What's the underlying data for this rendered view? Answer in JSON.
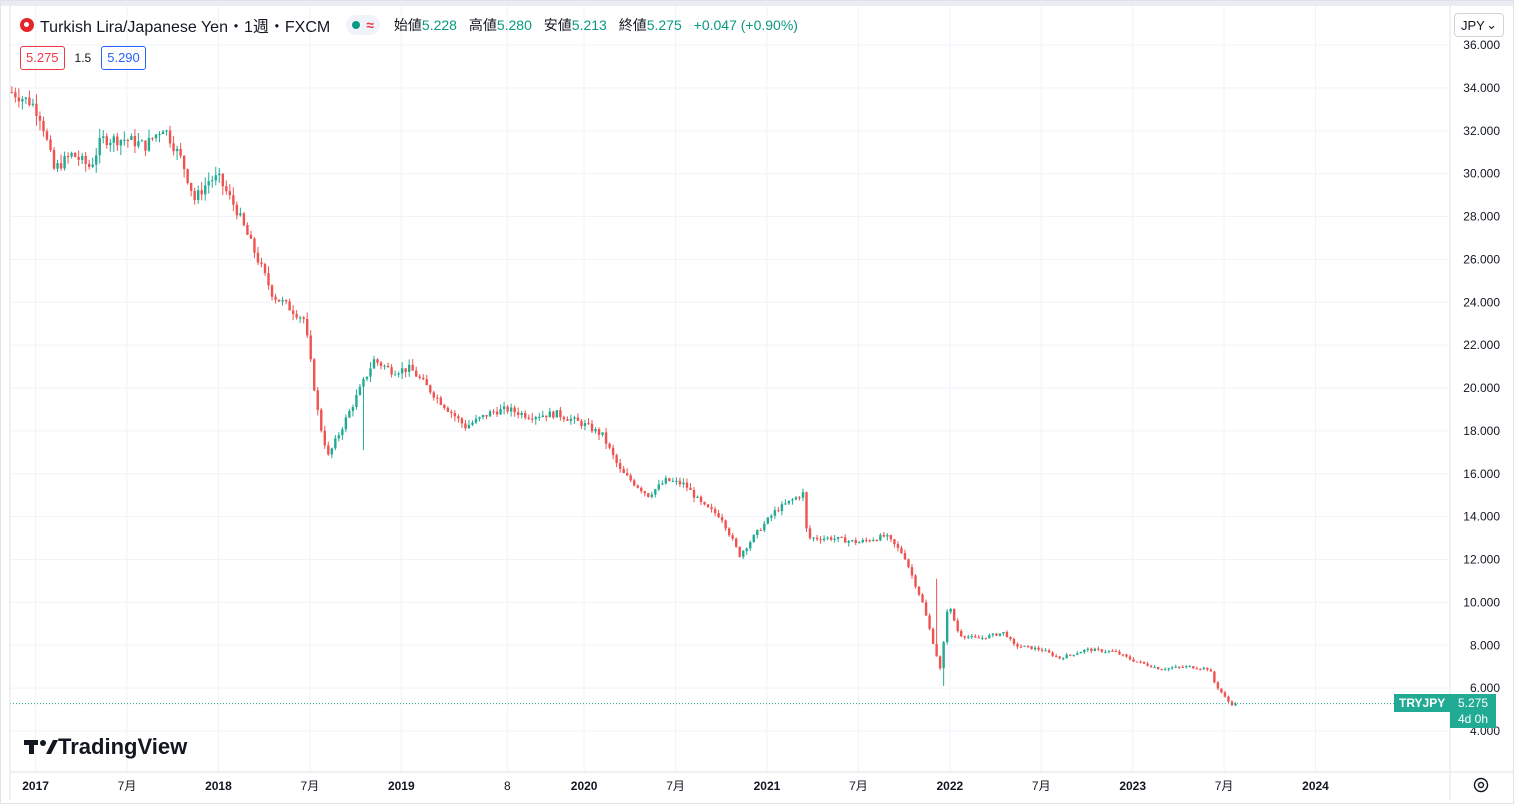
{
  "header": {
    "symbol_title": "Turkish Lira/Japanese Yen・1週・FXCM",
    "status_icon": "market-open-dot",
    "wave_icon": "≈",
    "ohlc": [
      {
        "label": "始値",
        "value": "5.228"
      },
      {
        "label": "高値",
        "value": "5.280"
      },
      {
        "label": "安値",
        "value": "5.213"
      },
      {
        "label": "終値",
        "value": "5.275"
      }
    ],
    "change": "+0.047 (+0.90%)"
  },
  "trade": {
    "sell": "5.275",
    "spread": "1.5",
    "buy": "5.290"
  },
  "currency": {
    "value": "JPY",
    "chevron": "⌄"
  },
  "brand": {
    "mark": "17",
    "name": "TradingView"
  },
  "last_price": {
    "symbol": "TRYJPY",
    "value": "5.275",
    "countdown": "4d 0h"
  },
  "colors": {
    "up": "#22ab94",
    "down": "#ef5350",
    "grid": "#f0f3fa",
    "axis_text": "#131722"
  },
  "chart_data": {
    "type": "candlestick",
    "title": "Turkish Lira/Japanese Yen・1週・FXCM",
    "ylim": [
      4,
      36
    ],
    "y_ticks": [
      "4.000",
      "6.000",
      "8.000",
      "10.000",
      "12.000",
      "14.000",
      "16.000",
      "18.000",
      "20.000",
      "22.000",
      "24.000",
      "26.000",
      "28.000",
      "30.000",
      "32.000",
      "34.000",
      "36.000"
    ],
    "x_ticks": [
      {
        "label": "2017",
        "year": 2017.0
      },
      {
        "label": "7月",
        "year": 2017.5
      },
      {
        "label": "2018",
        "year": 2018.0
      },
      {
        "label": "7月",
        "year": 2018.5
      },
      {
        "label": "2019",
        "year": 2019.0
      },
      {
        "label": "8",
        "year": 2019.58
      },
      {
        "label": "2020",
        "year": 2020.0
      },
      {
        "label": "7月",
        "year": 2020.5
      },
      {
        "label": "2021",
        "year": 2021.0
      },
      {
        "label": "7月",
        "year": 2021.5
      },
      {
        "label": "2022",
        "year": 2022.0
      },
      {
        "label": "7月",
        "year": 2022.5
      },
      {
        "label": "2023",
        "year": 2023.0
      },
      {
        "label": "7月",
        "year": 2023.5
      },
      {
        "label": "2024",
        "year": 2024.0
      }
    ],
    "x_range": [
      2016.86,
      2024.73
    ],
    "path_keypoints": [
      {
        "year": 2016.87,
        "close": 33.8
      },
      {
        "year": 2016.98,
        "close": 33.3
      },
      {
        "year": 2017.03,
        "close": 32.6
      },
      {
        "year": 2017.1,
        "close": 30.2
      },
      {
        "year": 2017.2,
        "close": 30.9
      },
      {
        "year": 2017.3,
        "close": 30.3
      },
      {
        "year": 2017.36,
        "close": 31.6
      },
      {
        "year": 2017.5,
        "close": 31.6
      },
      {
        "year": 2017.6,
        "close": 31.3
      },
      {
        "year": 2017.7,
        "close": 32.2
      },
      {
        "year": 2017.8,
        "close": 30.6
      },
      {
        "year": 2017.87,
        "close": 28.8
      },
      {
        "year": 2017.95,
        "close": 29.7
      },
      {
        "year": 2018.0,
        "close": 29.8
      },
      {
        "year": 2018.1,
        "close": 28.3
      },
      {
        "year": 2018.2,
        "close": 26.3
      },
      {
        "year": 2018.3,
        "close": 24.3
      },
      {
        "year": 2018.35,
        "close": 24.0
      },
      {
        "year": 2018.47,
        "close": 23.2
      },
      {
        "year": 2018.55,
        "close": 18.5
      },
      {
        "year": 2018.6,
        "close": 16.8
      },
      {
        "year": 2018.75,
        "close": 19.5
      },
      {
        "year": 2018.85,
        "close": 21.3
      },
      {
        "year": 2018.95,
        "close": 20.8
      },
      {
        "year": 2019.05,
        "close": 20.9
      },
      {
        "year": 2019.2,
        "close": 19.5
      },
      {
        "year": 2019.35,
        "close": 18.2
      },
      {
        "year": 2019.5,
        "close": 18.9
      },
      {
        "year": 2019.58,
        "close": 19.0
      },
      {
        "year": 2019.7,
        "close": 18.7
      },
      {
        "year": 2019.85,
        "close": 18.8
      },
      {
        "year": 2020.0,
        "close": 18.3
      },
      {
        "year": 2020.1,
        "close": 17.8
      },
      {
        "year": 2020.2,
        "close": 16.1
      },
      {
        "year": 2020.35,
        "close": 15.0
      },
      {
        "year": 2020.45,
        "close": 15.7
      },
      {
        "year": 2020.55,
        "close": 15.5
      },
      {
        "year": 2020.65,
        "close": 14.5
      },
      {
        "year": 2020.75,
        "close": 14.0
      },
      {
        "year": 2020.85,
        "close": 12.2
      },
      {
        "year": 2020.95,
        "close": 13.3
      },
      {
        "year": 2021.05,
        "close": 14.3
      },
      {
        "year": 2021.2,
        "close": 15.1
      },
      {
        "year": 2021.22,
        "close": 13.0
      },
      {
        "year": 2021.35,
        "close": 13.0
      },
      {
        "year": 2021.5,
        "close": 12.8
      },
      {
        "year": 2021.65,
        "close": 13.1
      },
      {
        "year": 2021.75,
        "close": 12.2
      },
      {
        "year": 2021.85,
        "close": 10.0
      },
      {
        "year": 2021.95,
        "close": 6.8
      },
      {
        "year": 2021.99,
        "close": 10.0
      },
      {
        "year": 2022.05,
        "close": 8.5
      },
      {
        "year": 2022.15,
        "close": 8.3
      },
      {
        "year": 2022.3,
        "close": 8.6
      },
      {
        "year": 2022.35,
        "close": 8.0
      },
      {
        "year": 2022.5,
        "close": 7.8
      },
      {
        "year": 2022.6,
        "close": 7.4
      },
      {
        "year": 2022.75,
        "close": 7.8
      },
      {
        "year": 2022.9,
        "close": 7.7
      },
      {
        "year": 2023.0,
        "close": 7.3
      },
      {
        "year": 2023.15,
        "close": 6.9
      },
      {
        "year": 2023.3,
        "close": 7.0
      },
      {
        "year": 2023.42,
        "close": 6.9
      },
      {
        "year": 2023.45,
        "close": 6.2
      },
      {
        "year": 2023.52,
        "close": 5.4
      },
      {
        "year": 2023.55,
        "close": 5.2
      },
      {
        "year": 2023.58,
        "close": 5.275
      }
    ],
    "sharp_spikes": [
      {
        "year": 2018.8,
        "low": 17.1
      },
      {
        "year": 2021.93,
        "high": 11.1
      },
      {
        "year": 2021.96,
        "low": 6.1
      }
    ],
    "last_close": 5.275
  }
}
